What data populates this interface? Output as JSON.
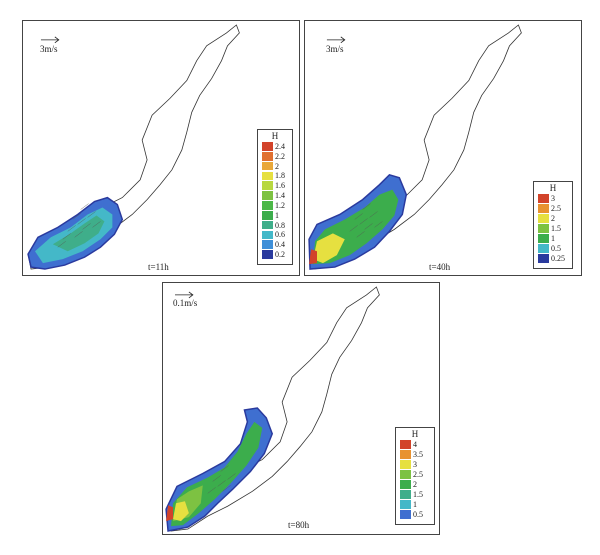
{
  "colors": {
    "outline": "#333333",
    "deep_blue": "#2a3a9e",
    "blue": "#3f6fd0",
    "cyan": "#44b8c8",
    "teal": "#3fae8a",
    "green": "#3cad4c",
    "lightgreen": "#7dc242",
    "yellow": "#e6e040",
    "orange": "#e89230",
    "red": "#d2432a",
    "arrows": "#555555"
  },
  "panels": [
    {
      "scale_label": "3m/s",
      "time_label": "t=11h",
      "legend": {
        "title": "H",
        "levels": [
          {
            "label": "2.4",
            "color": "#d2432a"
          },
          {
            "label": "2.2",
            "color": "#e07030"
          },
          {
            "label": "2",
            "color": "#e9a83a"
          },
          {
            "label": "1.8",
            "color": "#e6e040"
          },
          {
            "label": "1.6",
            "color": "#b8d840"
          },
          {
            "label": "1.4",
            "color": "#7dc242"
          },
          {
            "label": "1.2",
            "color": "#4cb848"
          },
          {
            "label": "1",
            "color": "#3cad4c"
          },
          {
            "label": "0.8",
            "color": "#3fae8a"
          },
          {
            "label": "0.6",
            "color": "#44b8c8"
          },
          {
            "label": "0.4",
            "color": "#3f8fd8"
          },
          {
            "label": "0.2",
            "color": "#2a3a9e"
          }
        ]
      }
    },
    {
      "scale_label": "3m/s",
      "time_label": "t=40h",
      "legend": {
        "title": "H",
        "levels": [
          {
            "label": "3",
            "color": "#d2432a"
          },
          {
            "label": "2.5",
            "color": "#e89230"
          },
          {
            "label": "2",
            "color": "#e6e040"
          },
          {
            "label": "1.5",
            "color": "#7dc242"
          },
          {
            "label": "1",
            "color": "#3cad4c"
          },
          {
            "label": "0.5",
            "color": "#44b8c8"
          },
          {
            "label": "0.25",
            "color": "#2a3a9e"
          }
        ]
      }
    },
    {
      "scale_label": "0.1m/s",
      "time_label": "t=80h",
      "legend": {
        "title": "H",
        "levels": [
          {
            "label": "4",
            "color": "#d2432a"
          },
          {
            "label": "3.5",
            "color": "#e89230"
          },
          {
            "label": "3",
            "color": "#e6e040"
          },
          {
            "label": "2.5",
            "color": "#7dc242"
          },
          {
            "label": "2",
            "color": "#3cad4c"
          },
          {
            "label": "1.5",
            "color": "#3fae8a"
          },
          {
            "label": "1",
            "color": "#44b8c8"
          },
          {
            "label": "0.5",
            "color": "#3f6fd0"
          }
        ]
      }
    }
  ]
}
